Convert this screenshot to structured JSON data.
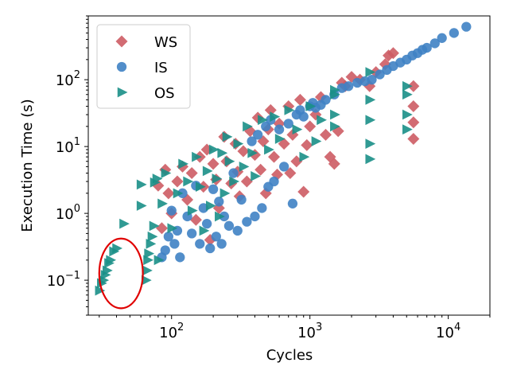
{
  "chart_data": {
    "type": "scatter",
    "xlabel": "Cycles",
    "ylabel": "Execution Time (s)",
    "xscale": "log",
    "yscale": "log",
    "xlim": [
      25,
      20000
    ],
    "ylim": [
      0.03,
      900
    ],
    "xticks": [
      {
        "value": 100,
        "base": "10",
        "exp": "2"
      },
      {
        "value": 1000,
        "base": "10",
        "exp": "3"
      },
      {
        "value": 10000,
        "base": "10",
        "exp": "4"
      }
    ],
    "yticks": [
      {
        "value": 0.1,
        "base": "10",
        "exp": "−1"
      },
      {
        "value": 1,
        "base": "10",
        "exp": "0"
      },
      {
        "value": 10,
        "base": "10",
        "exp": "1"
      },
      {
        "value": 100,
        "base": "10",
        "exp": "2"
      }
    ],
    "legend_position": "top-left",
    "annotation": {
      "type": "ellipse",
      "color": "#e00000",
      "x_range": [
        30,
        62
      ],
      "y_range": [
        0.038,
        0.42
      ]
    },
    "series": [
      {
        "name": "WS",
        "marker": "diamond",
        "color": "#cd5c64",
        "points": [
          [
            80,
            2.6
          ],
          [
            85,
            0.6
          ],
          [
            90,
            4.5
          ],
          [
            95,
            2.0
          ],
          [
            100,
            1.0
          ],
          [
            110,
            3.0
          ],
          [
            120,
            5.0
          ],
          [
            130,
            1.6
          ],
          [
            140,
            4.0
          ],
          [
            150,
            0.8
          ],
          [
            160,
            7.0
          ],
          [
            170,
            2.5
          ],
          [
            180,
            9.0
          ],
          [
            190,
            0.4
          ],
          [
            200,
            5.5
          ],
          [
            210,
            3.2
          ],
          [
            220,
            1.2
          ],
          [
            240,
            14.0
          ],
          [
            250,
            6.0
          ],
          [
            270,
            2.8
          ],
          [
            290,
            11.0
          ],
          [
            300,
            4.2
          ],
          [
            310,
            1.8
          ],
          [
            330,
            8.5
          ],
          [
            350,
            3.0
          ],
          [
            370,
            17.0
          ],
          [
            400,
            7.5
          ],
          [
            420,
            27.0
          ],
          [
            440,
            4.5
          ],
          [
            460,
            12.0
          ],
          [
            480,
            2.0
          ],
          [
            500,
            18.0
          ],
          [
            520,
            35.0
          ],
          [
            550,
            7.0
          ],
          [
            580,
            3.8
          ],
          [
            600,
            22.0
          ],
          [
            650,
            11.0
          ],
          [
            700,
            40.0
          ],
          [
            720,
            4.0
          ],
          [
            750,
            15.0
          ],
          [
            800,
            6.0
          ],
          [
            850,
            50.0
          ],
          [
            900,
            2.1
          ],
          [
            950,
            10.5
          ],
          [
            1000,
            20.0
          ],
          [
            1100,
            30.0
          ],
          [
            1200,
            55.0
          ],
          [
            1300,
            15.0
          ],
          [
            1400,
            7.0
          ],
          [
            1500,
            5.5
          ],
          [
            1600,
            17.0
          ],
          [
            1700,
            90.0
          ],
          [
            1800,
            80.0
          ],
          [
            2000,
            110.0
          ],
          [
            2300,
            100.0
          ],
          [
            2700,
            80.0
          ],
          [
            3000,
            130.0
          ],
          [
            3500,
            170.0
          ],
          [
            3700,
            230.0
          ],
          [
            4000,
            250.0
          ],
          [
            5600,
            80.0
          ],
          [
            5600,
            40.0
          ],
          [
            5600,
            23.0
          ],
          [
            5600,
            13.0
          ]
        ]
      },
      {
        "name": "IS",
        "marker": "circle",
        "color": "#3f82c4",
        "points": [
          [
            85,
            0.22
          ],
          [
            90,
            0.28
          ],
          [
            95,
            0.45
          ],
          [
            100,
            1.1
          ],
          [
            105,
            0.35
          ],
          [
            110,
            0.55
          ],
          [
            115,
            0.22
          ],
          [
            120,
            2.0
          ],
          [
            130,
            0.9
          ],
          [
            140,
            0.5
          ],
          [
            150,
            2.6
          ],
          [
            160,
            0.35
          ],
          [
            170,
            1.2
          ],
          [
            180,
            0.7
          ],
          [
            190,
            0.3
          ],
          [
            200,
            2.3
          ],
          [
            210,
            0.45
          ],
          [
            220,
            1.5
          ],
          [
            230,
            0.35
          ],
          [
            240,
            0.9
          ],
          [
            260,
            0.65
          ],
          [
            280,
            4.0
          ],
          [
            300,
            0.55
          ],
          [
            320,
            1.6
          ],
          [
            350,
            0.75
          ],
          [
            380,
            12.0
          ],
          [
            400,
            0.9
          ],
          [
            420,
            15.0
          ],
          [
            450,
            1.2
          ],
          [
            480,
            20.0
          ],
          [
            500,
            2.5
          ],
          [
            520,
            25.0
          ],
          [
            550,
            3.0
          ],
          [
            600,
            18.0
          ],
          [
            650,
            5.0
          ],
          [
            700,
            22.0
          ],
          [
            750,
            1.4
          ],
          [
            800,
            30.0
          ],
          [
            850,
            35.0
          ],
          [
            900,
            28.0
          ],
          [
            1000,
            40.0
          ],
          [
            1050,
            45.0
          ],
          [
            1100,
            38.0
          ],
          [
            1200,
            42.0
          ],
          [
            1300,
            50.0
          ],
          [
            1500,
            60.0
          ],
          [
            1700,
            75.0
          ],
          [
            1900,
            80.0
          ],
          [
            2200,
            90.0
          ],
          [
            2500,
            95.0
          ],
          [
            2800,
            100.0
          ],
          [
            3200,
            120.0
          ],
          [
            3600,
            140.0
          ],
          [
            4000,
            160.0
          ],
          [
            4500,
            180.0
          ],
          [
            5000,
            200.0
          ],
          [
            5500,
            230.0
          ],
          [
            6000,
            250.0
          ],
          [
            6500,
            280.0
          ],
          [
            7000,
            300.0
          ],
          [
            8000,
            350.0
          ],
          [
            9000,
            420.0
          ],
          [
            11000,
            500.0
          ],
          [
            13500,
            620.0
          ]
        ]
      },
      {
        "name": "OS",
        "marker": "triangle-right",
        "color": "#1a8f87",
        "points": [
          [
            30,
            0.07
          ],
          [
            31,
            0.09
          ],
          [
            32,
            0.1
          ],
          [
            33,
            0.12
          ],
          [
            34,
            0.14
          ],
          [
            35,
            0.18
          ],
          [
            36,
            0.2
          ],
          [
            38,
            0.27
          ],
          [
            40,
            0.3
          ],
          [
            45,
            0.7
          ],
          [
            60,
            2.7
          ],
          [
            60,
            1.3
          ],
          [
            65,
            0.1
          ],
          [
            66,
            0.14
          ],
          [
            67,
            0.2
          ],
          [
            68,
            0.25
          ],
          [
            70,
            0.35
          ],
          [
            72,
            0.45
          ],
          [
            74,
            0.65
          ],
          [
            75,
            2.9
          ],
          [
            78,
            3.3
          ],
          [
            80,
            0.2
          ],
          [
            85,
            1.4
          ],
          [
            90,
            4.0
          ],
          [
            100,
            0.6
          ],
          [
            110,
            2.0
          ],
          [
            120,
            5.5
          ],
          [
            130,
            3.0
          ],
          [
            140,
            1.1
          ],
          [
            150,
            7.0
          ],
          [
            160,
            2.5
          ],
          [
            170,
            0.55
          ],
          [
            180,
            4.3
          ],
          [
            190,
            1.3
          ],
          [
            200,
            9.0
          ],
          [
            210,
            3.3
          ],
          [
            220,
            0.9
          ],
          [
            230,
            8.0
          ],
          [
            240,
            2.0
          ],
          [
            250,
            14.0
          ],
          [
            260,
            6.0
          ],
          [
            280,
            3.0
          ],
          [
            300,
            11.0
          ],
          [
            330,
            5.0
          ],
          [
            350,
            20.0
          ],
          [
            380,
            8.0
          ],
          [
            400,
            3.6
          ],
          [
            450,
            25.0
          ],
          [
            500,
            9.0
          ],
          [
            550,
            28.0
          ],
          [
            600,
            13.0
          ],
          [
            700,
            35.0
          ],
          [
            800,
            18.0
          ],
          [
            900,
            7.0
          ],
          [
            1000,
            40.0
          ],
          [
            1100,
            12.0
          ],
          [
            1200,
            25.0
          ],
          [
            1500,
            70.0
          ],
          [
            1500,
            60.0
          ],
          [
            1500,
            30.0
          ],
          [
            1500,
            20.0
          ],
          [
            2700,
            130.0
          ],
          [
            2700,
            50.0
          ],
          [
            2700,
            25.0
          ],
          [
            2700,
            11.0
          ],
          [
            2700,
            6.5
          ],
          [
            5000,
            60.0
          ],
          [
            5000,
            30.0
          ],
          [
            5000,
            18.0
          ],
          [
            5000,
            80.0
          ]
        ]
      }
    ]
  }
}
